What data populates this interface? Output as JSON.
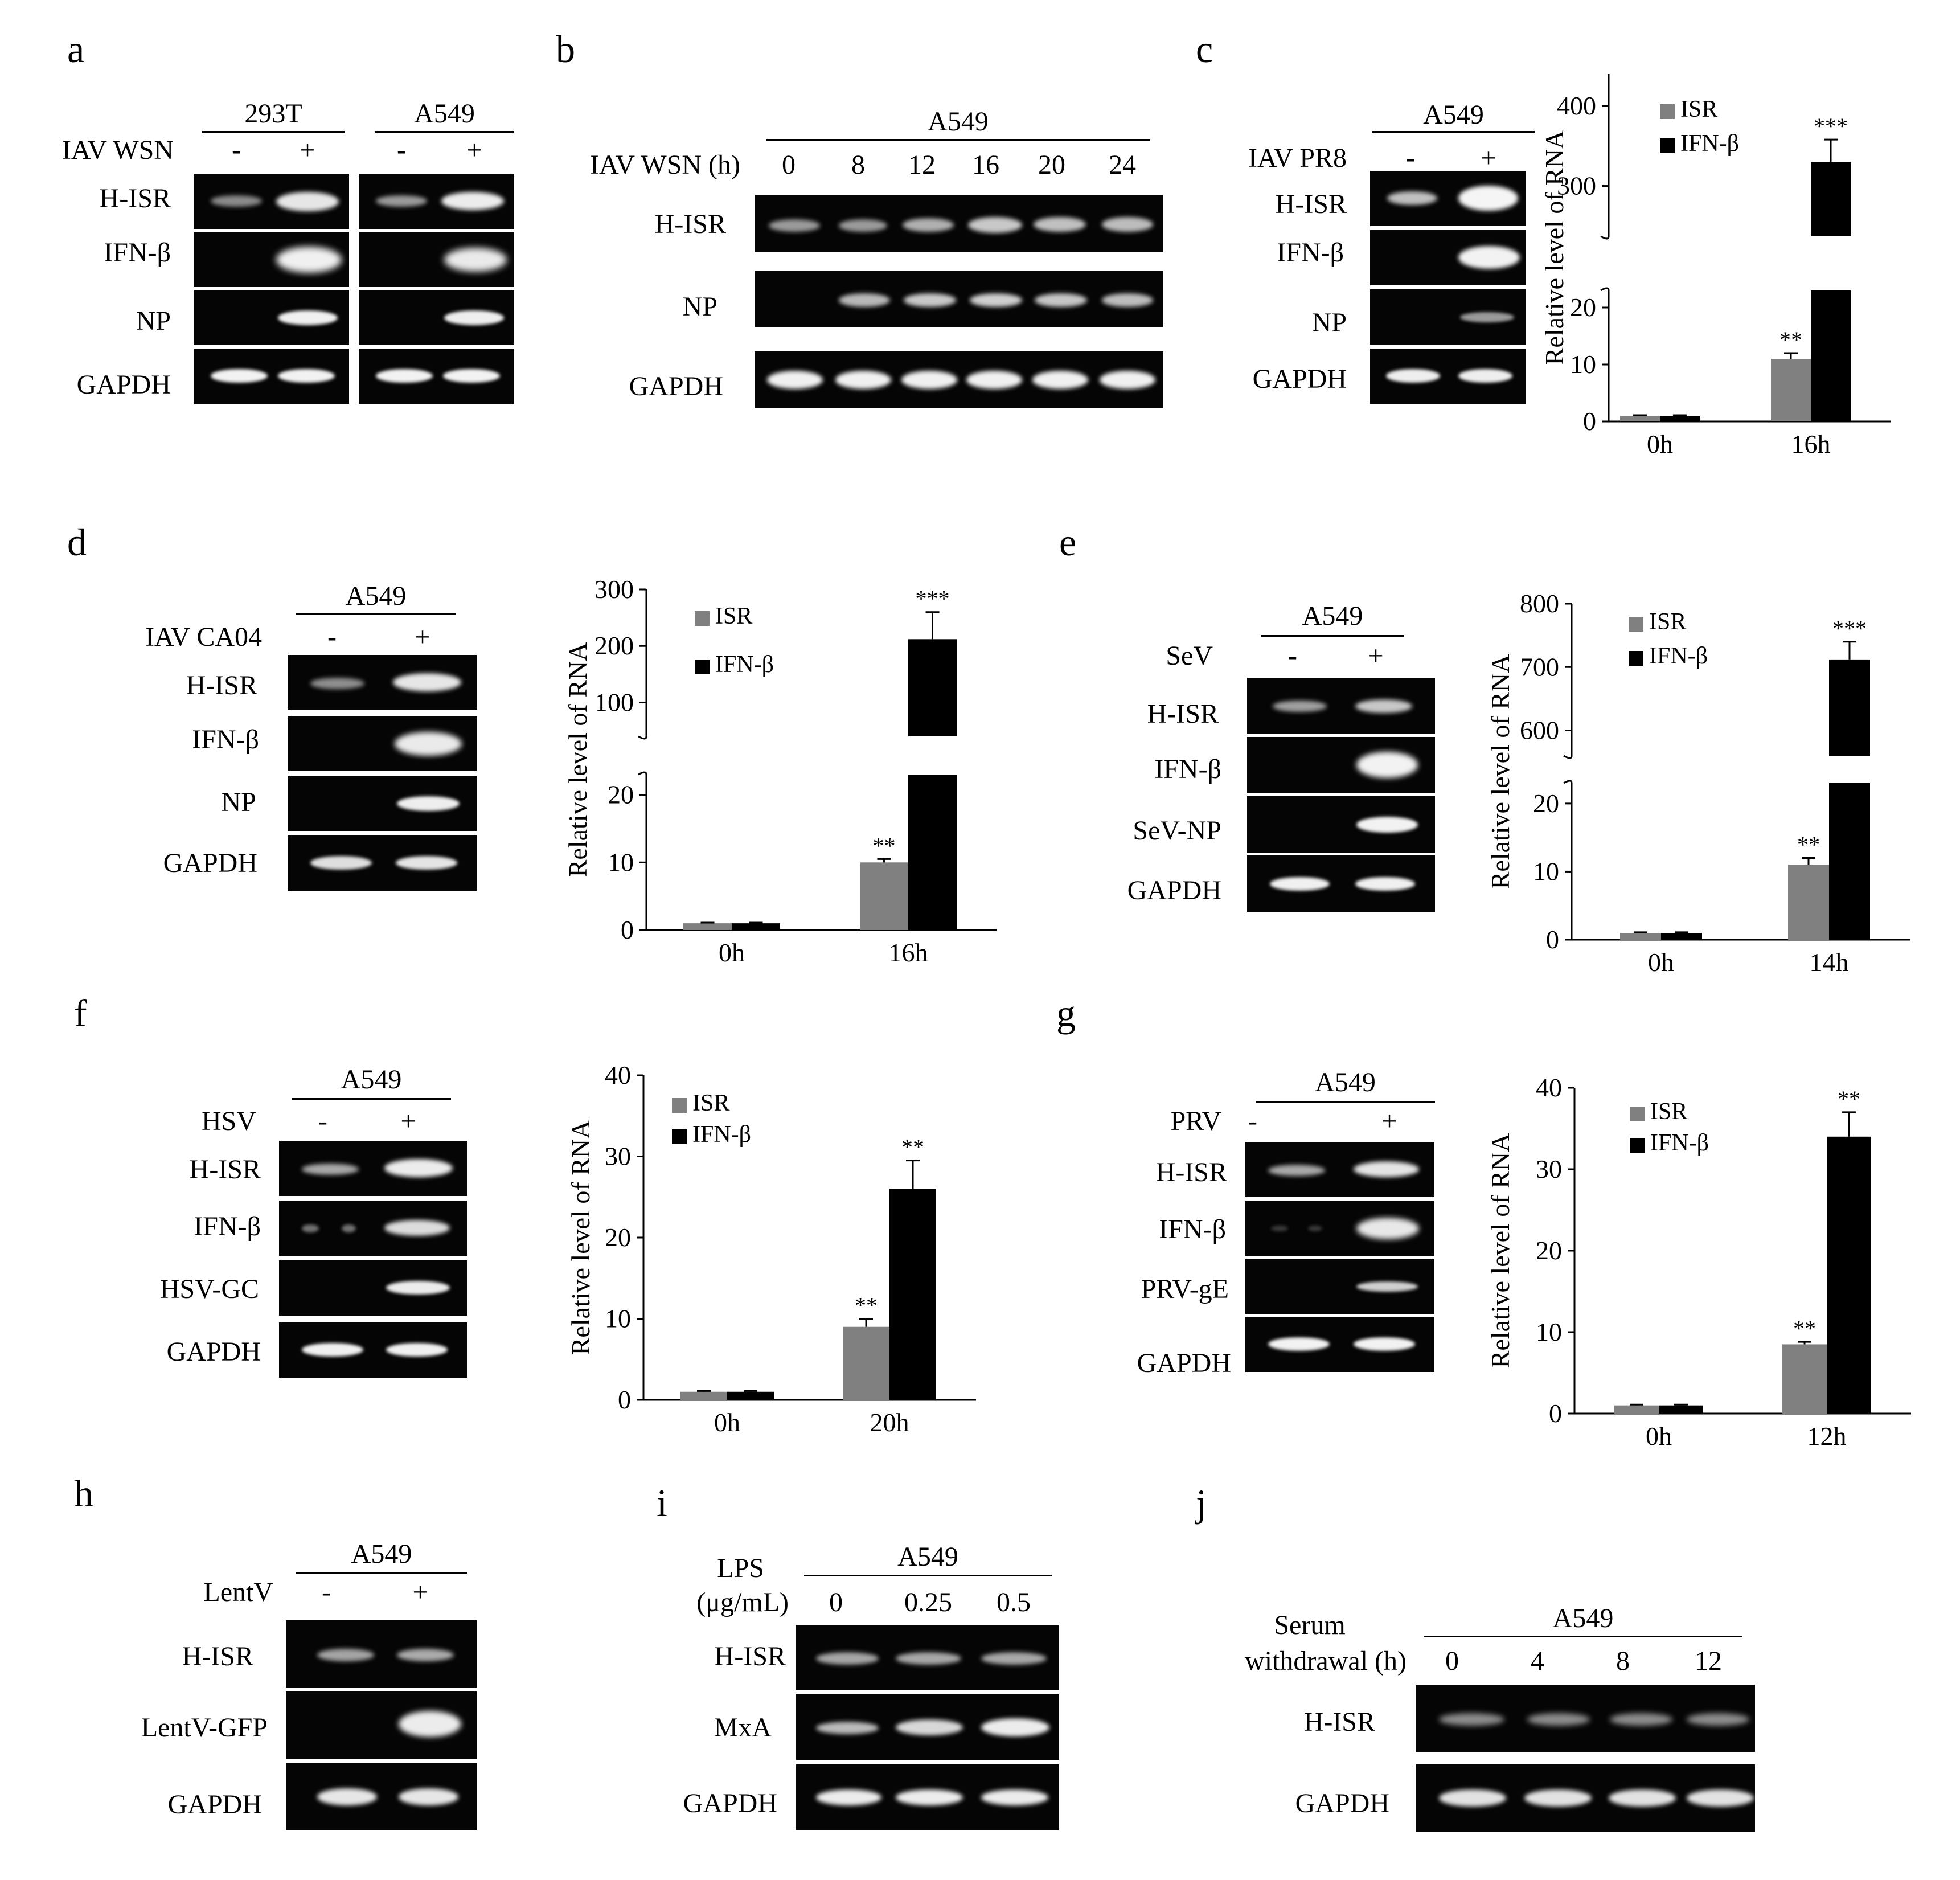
{
  "panel_labels": [
    "a",
    "b",
    "c",
    "d",
    "e",
    "f",
    "g",
    "h",
    "i",
    "j"
  ],
  "panels": {
    "a": {
      "groups": [
        "293T",
        "A549"
      ],
      "treatment": "IAV WSN",
      "lanes": [
        "-",
        "+",
        "-",
        "+"
      ],
      "rows": [
        "H-ISR",
        "IFN-β",
        "NP",
        "GAPDH"
      ]
    },
    "b": {
      "group": "A549",
      "treatment": "IAV WSN (h)",
      "lanes": [
        "0",
        "8",
        "12",
        "16",
        "20",
        "24"
      ],
      "rows": [
        "H-ISR",
        "NP",
        "GAPDH"
      ]
    },
    "c": {
      "group": "A549",
      "treatment": "IAV PR8",
      "lanes": [
        "-",
        "+"
      ],
      "rows": [
        "H-ISR",
        "IFN-β",
        "NP",
        "GAPDH"
      ]
    },
    "d": {
      "group": "A549",
      "treatment": "IAV CA04",
      "lanes": [
        "-",
        "+"
      ],
      "rows": [
        "H-ISR",
        "IFN-β",
        "NP",
        "GAPDH"
      ]
    },
    "e": {
      "group": "A549",
      "treatment": "SeV",
      "lanes": [
        "-",
        "+"
      ],
      "rows": [
        "H-ISR",
        "IFN-β",
        "SeV-NP",
        "GAPDH"
      ]
    },
    "f": {
      "group": "A549",
      "treatment": "HSV",
      "lanes": [
        "-",
        "+"
      ],
      "rows": [
        "H-ISR",
        "IFN-β",
        "HSV-GC",
        "GAPDH"
      ]
    },
    "g": {
      "group": "A549",
      "treatment": "PRV",
      "lanes": [
        "-",
        "+"
      ],
      "rows": [
        "H-ISR",
        "IFN-β",
        "PRV-gE",
        "GAPDH"
      ]
    },
    "h": {
      "group": "A549",
      "treatment": "LentV",
      "lanes": [
        "-",
        "+"
      ],
      "rows": [
        "H-ISR",
        "LentV-GFP",
        "GAPDH"
      ]
    },
    "i": {
      "group": "A549",
      "treatment_line1": "LPS",
      "treatment_line2": "(μg/mL)",
      "lanes": [
        "0",
        "0.25",
        "0.5"
      ],
      "rows": [
        "H-ISR",
        "MxA",
        "GAPDH"
      ]
    },
    "j": {
      "group": "A549",
      "treatment_line1": "Serum",
      "treatment_line2": "withdrawal (h)",
      "lanes": [
        "0",
        "4",
        "8",
        "12"
      ],
      "rows": [
        "H-ISR",
        "GAPDH"
      ]
    }
  },
  "chart_data": [
    {
      "panel": "c",
      "type": "bar",
      "ylabel": "Relative level of RNA",
      "categories": [
        "0h",
        "16h"
      ],
      "broken_axis": true,
      "lower_ticks": [
        0,
        10,
        20
      ],
      "upper_ticks": [
        300,
        400
      ],
      "series": [
        {
          "name": "ISR",
          "color": "#808080",
          "values": [
            1,
            11
          ],
          "errors": [
            0.1,
            1
          ]
        },
        {
          "name": "IFN-β",
          "color": "#000000",
          "values": [
            1,
            330
          ],
          "errors": [
            0.1,
            28
          ]
        }
      ],
      "annotations": [
        {
          "category": "16h",
          "series": 0,
          "text": "**"
        },
        {
          "category": "16h",
          "series": 1,
          "text": "***"
        }
      ]
    },
    {
      "panel": "d",
      "type": "bar",
      "ylabel": "Relative level of RNA",
      "categories": [
        "0h",
        "16h"
      ],
      "broken_axis": true,
      "lower_ticks": [
        0,
        10,
        20
      ],
      "upper_ticks": [
        100,
        200,
        300
      ],
      "series": [
        {
          "name": "ISR",
          "color": "#808080",
          "values": [
            1,
            10
          ],
          "errors": [
            0.1,
            0.5
          ]
        },
        {
          "name": "IFN-β",
          "color": "#000000",
          "values": [
            1,
            212
          ],
          "errors": [
            0.1,
            48
          ]
        }
      ],
      "annotations": [
        {
          "category": "16h",
          "series": 0,
          "text": "**"
        },
        {
          "category": "16h",
          "series": 1,
          "text": "***"
        }
      ]
    },
    {
      "panel": "e",
      "type": "bar",
      "ylabel": "Relative level of RNA",
      "categories": [
        "0h",
        "14h"
      ],
      "broken_axis": true,
      "lower_ticks": [
        0,
        10,
        20
      ],
      "upper_ticks": [
        600,
        700,
        800
      ],
      "series": [
        {
          "name": "ISR",
          "color": "#808080",
          "values": [
            1,
            11
          ],
          "errors": [
            0.1,
            1
          ]
        },
        {
          "name": "IFN-β",
          "color": "#000000",
          "values": [
            1,
            712
          ],
          "errors": [
            0.1,
            28
          ]
        }
      ],
      "annotations": [
        {
          "category": "14h",
          "series": 0,
          "text": "**"
        },
        {
          "category": "14h",
          "series": 1,
          "text": "***"
        }
      ]
    },
    {
      "panel": "f",
      "type": "bar",
      "ylabel": "Relative level of RNA",
      "categories": [
        "0h",
        "20h"
      ],
      "broken_axis": false,
      "ticks": [
        0,
        10,
        20,
        30,
        40
      ],
      "ylim": [
        0,
        40
      ],
      "series": [
        {
          "name": "ISR",
          "color": "#808080",
          "values": [
            1,
            9
          ],
          "errors": [
            0.1,
            1
          ]
        },
        {
          "name": "IFN-β",
          "color": "#000000",
          "values": [
            1,
            26
          ],
          "errors": [
            0.1,
            3.5
          ]
        }
      ],
      "annotations": [
        {
          "category": "20h",
          "series": 0,
          "text": "**"
        },
        {
          "category": "20h",
          "series": 1,
          "text": "**"
        }
      ]
    },
    {
      "panel": "g",
      "type": "bar",
      "ylabel": "Relative level of RNA",
      "categories": [
        "0h",
        "12h"
      ],
      "broken_axis": false,
      "ticks": [
        0,
        10,
        20,
        30,
        40
      ],
      "ylim": [
        0,
        40
      ],
      "series": [
        {
          "name": "ISR",
          "color": "#808080",
          "values": [
            1,
            8.5
          ],
          "errors": [
            0.1,
            0.3
          ]
        },
        {
          "name": "IFN-β",
          "color": "#000000",
          "values": [
            1,
            34
          ],
          "errors": [
            0.1,
            3
          ]
        }
      ],
      "annotations": [
        {
          "category": "12h",
          "series": 0,
          "text": "**"
        },
        {
          "category": "12h",
          "series": 1,
          "text": "**"
        }
      ]
    }
  ]
}
